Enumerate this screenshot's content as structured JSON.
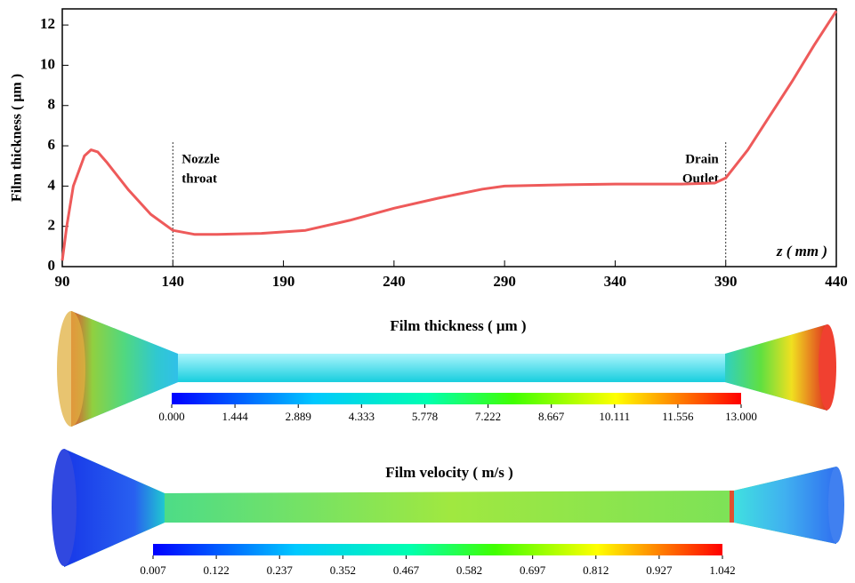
{
  "chart_data": [
    {
      "type": "line",
      "y_label": "Film thickness ( μm )",
      "x_label": "z ( mm )",
      "color": "#ee5a5a",
      "x": [
        90,
        92,
        95,
        100,
        103,
        106,
        110,
        120,
        130,
        140,
        150,
        160,
        180,
        200,
        220,
        240,
        260,
        280,
        290,
        310,
        340,
        370,
        385,
        390,
        400,
        410,
        420,
        430,
        440
      ],
      "values": [
        0.3,
        2,
        4,
        5.5,
        5.8,
        5.7,
        5.2,
        3.8,
        2.6,
        1.8,
        1.6,
        1.6,
        1.65,
        1.8,
        2.3,
        2.9,
        3.4,
        3.85,
        4.0,
        4.05,
        4.1,
        4.1,
        4.15,
        4.4,
        5.8,
        7.5,
        9.2,
        11,
        12.7
      ],
      "xlim": [
        90,
        440
      ],
      "xticks": [
        90,
        140,
        190,
        240,
        290,
        340,
        390,
        440
      ],
      "ylim": [
        0,
        12.8
      ],
      "yticks": [
        0,
        2,
        4,
        6,
        8,
        10,
        12
      ],
      "annotations": [
        {
          "x": 140,
          "lines": [
            "Nozzle",
            "throat"
          ]
        },
        {
          "x": 390,
          "lines": [
            "Drain",
            "Outlet"
          ]
        }
      ]
    },
    {
      "type": "colormap",
      "title": "Film thickness ( μm )",
      "clim": [
        0,
        13
      ],
      "ticks": [
        {
          "value": 0,
          "label": "0.000"
        },
        {
          "value": 1.444,
          "label": "1.444"
        },
        {
          "value": 2.889,
          "label": "2.889"
        },
        {
          "value": 4.333,
          "label": "4.333"
        },
        {
          "value": 5.778,
          "label": "5.778"
        },
        {
          "value": 7.222,
          "label": "7.222"
        },
        {
          "value": 8.667,
          "label": "8.667"
        },
        {
          "value": 10.111,
          "label": "10.111"
        },
        {
          "value": 11.556,
          "label": "11.556"
        },
        {
          "value": 13,
          "label": "13.000"
        }
      ]
    },
    {
      "type": "colormap",
      "title": "Film velocity ( m/s )",
      "clim": [
        0.007,
        1.042
      ],
      "ticks": [
        {
          "value": 0.007,
          "label": "0.007"
        },
        {
          "value": 0.122,
          "label": "0.122"
        },
        {
          "value": 0.237,
          "label": "0.237"
        },
        {
          "value": 0.352,
          "label": "0.352"
        },
        {
          "value": 0.467,
          "label": "0.467"
        },
        {
          "value": 0.582,
          "label": "0.582"
        },
        {
          "value": 0.697,
          "label": "0.697"
        },
        {
          "value": 0.812,
          "label": "0.812"
        },
        {
          "value": 0.927,
          "label": "0.927"
        },
        {
          "value": 1.042,
          "label": "1.042"
        }
      ]
    }
  ]
}
